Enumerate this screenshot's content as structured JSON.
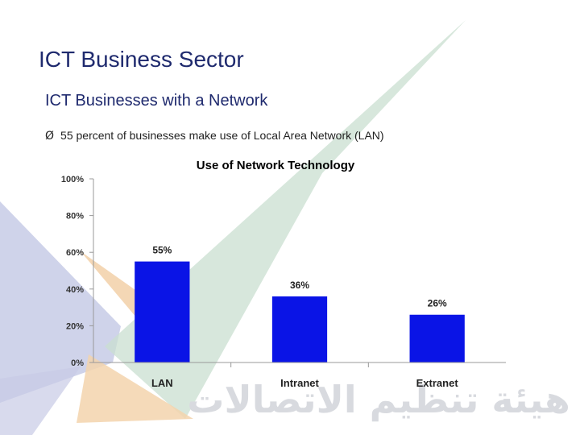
{
  "slide": {
    "title": "ICT Business Sector",
    "subtitle": "ICT Businesses with a Network",
    "bullet_marker": "Ø",
    "bullet": "55 percent of businesses make use of Local Area Network (LAN)"
  },
  "watermark": {
    "text": "هيئة تنظيم الاتصالات",
    "colors": {
      "blue": "#c7cbe6",
      "green": "#c9dfd0",
      "orange": "#f3d3ad",
      "text": "#d8dadf"
    }
  },
  "chart_data": {
    "type": "bar",
    "title": "Use of Network Technology",
    "categories": [
      "LAN",
      "Intranet",
      "Extranet"
    ],
    "values": [
      55,
      36,
      26
    ],
    "value_labels": [
      "55%",
      "36%",
      "26%"
    ],
    "xlabel": "",
    "ylabel": "",
    "ylim": [
      0,
      100
    ],
    "yticks": [
      "0%",
      "20%",
      "40%",
      "60%",
      "80%",
      "100%"
    ],
    "grid": false,
    "bar_color": "#0a14e6"
  }
}
